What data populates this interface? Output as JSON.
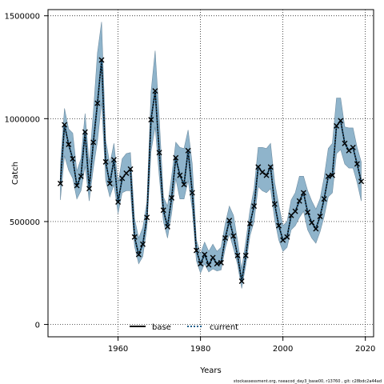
{
  "chart_data": {
    "type": "line",
    "xlabel": "Years",
    "ylabel": "Catch",
    "xlim": [
      1943,
      2022
    ],
    "ylim": [
      -60000,
      1530000
    ],
    "x_ticks": [
      1960,
      1980,
      2000,
      2020
    ],
    "y_ticks": [
      0,
      500000,
      1000000,
      1500000
    ],
    "y_tick_labels": [
      "0",
      "500000",
      "1000000",
      "1500000"
    ],
    "grid": true,
    "legend_position": "bottom-center",
    "colors": {
      "band": "#8fb4cb",
      "band_edge": "#6f8ea3",
      "base": "#000000",
      "current": "#1f5f8b",
      "marker": "#000000"
    },
    "footnote": "stockassessment.org, nseacod_day3_base00, r13760 , git: c28bdc2a44ad",
    "series": [
      {
        "name": "base",
        "style": "solid-black-with-x-markers"
      },
      {
        "name": "current",
        "style": "dotted-blue"
      }
    ],
    "x": [
      1946,
      1947,
      1948,
      1949,
      1950,
      1951,
      1952,
      1953,
      1954,
      1955,
      1956,
      1957,
      1958,
      1959,
      1960,
      1961,
      1962,
      1963,
      1964,
      1965,
      1966,
      1967,
      1968,
      1969,
      1970,
      1971,
      1972,
      1973,
      1974,
      1975,
      1976,
      1977,
      1978,
      1979,
      1980,
      1981,
      1982,
      1983,
      1984,
      1985,
      1986,
      1987,
      1988,
      1989,
      1990,
      1991,
      1992,
      1993,
      1994,
      1995,
      1996,
      1997,
      1998,
      1999,
      2000,
      2001,
      2002,
      2003,
      2004,
      2005,
      2006,
      2007,
      2008,
      2009,
      2010,
      2011,
      2012,
      2013,
      2014,
      2015,
      2016,
      2017,
      2018,
      2019
    ],
    "values": [
      685000,
      970000,
      875000,
      805000,
      675000,
      720000,
      935000,
      660000,
      885000,
      1075000,
      1285000,
      790000,
      685000,
      800000,
      595000,
      710000,
      735000,
      755000,
      425000,
      340000,
      390000,
      520000,
      995000,
      1135000,
      835000,
      555000,
      475000,
      615000,
      810000,
      725000,
      680000,
      845000,
      640000,
      360000,
      295000,
      340000,
      290000,
      325000,
      295000,
      300000,
      420000,
      505000,
      430000,
      335000,
      210000,
      335000,
      490000,
      575000,
      765000,
      740000,
      725000,
      765000,
      585000,
      480000,
      410000,
      425000,
      530000,
      550000,
      600000,
      640000,
      545000,
      495000,
      465000,
      525000,
      610000,
      720000,
      725000,
      965000,
      990000,
      880000,
      845000,
      860000,
      780000,
      695000
    ],
    "lower": [
      605000,
      820000,
      750000,
      710000,
      610000,
      650000,
      770000,
      600000,
      760000,
      890000,
      1080000,
      700000,
      620000,
      680000,
      540000,
      640000,
      650000,
      650000,
      380000,
      295000,
      330000,
      470000,
      840000,
      960000,
      720000,
      500000,
      420000,
      540000,
      710000,
      610000,
      610000,
      700000,
      560000,
      310000,
      250000,
      295000,
      255000,
      270000,
      260000,
      265000,
      370000,
      440000,
      370000,
      290000,
      175000,
      290000,
      430000,
      500000,
      670000,
      650000,
      640000,
      660000,
      510000,
      410000,
      355000,
      375000,
      460000,
      480000,
      520000,
      550000,
      460000,
      420000,
      395000,
      450000,
      525000,
      620000,
      640000,
      830000,
      850000,
      780000,
      760000,
      760000,
      690000,
      600000
    ],
    "upper": [
      775000,
      1050000,
      950000,
      930000,
      745000,
      805000,
      1025000,
      780000,
      1030000,
      1320000,
      1470000,
      895000,
      780000,
      880000,
      685000,
      805000,
      830000,
      835000,
      515000,
      420000,
      470000,
      595000,
      1130000,
      1330000,
      1000000,
      620000,
      575000,
      720000,
      885000,
      860000,
      855000,
      945000,
      780000,
      410000,
      345000,
      400000,
      355000,
      390000,
      355000,
      375000,
      490000,
      575000,
      530000,
      405000,
      270000,
      405000,
      555000,
      660000,
      860000,
      860000,
      855000,
      880000,
      690000,
      580000,
      480000,
      500000,
      605000,
      640000,
      720000,
      720000,
      650000,
      600000,
      560000,
      610000,
      715000,
      855000,
      880000,
      1100000,
      1100000,
      960000,
      955000,
      955000,
      860000,
      790000
    ]
  }
}
